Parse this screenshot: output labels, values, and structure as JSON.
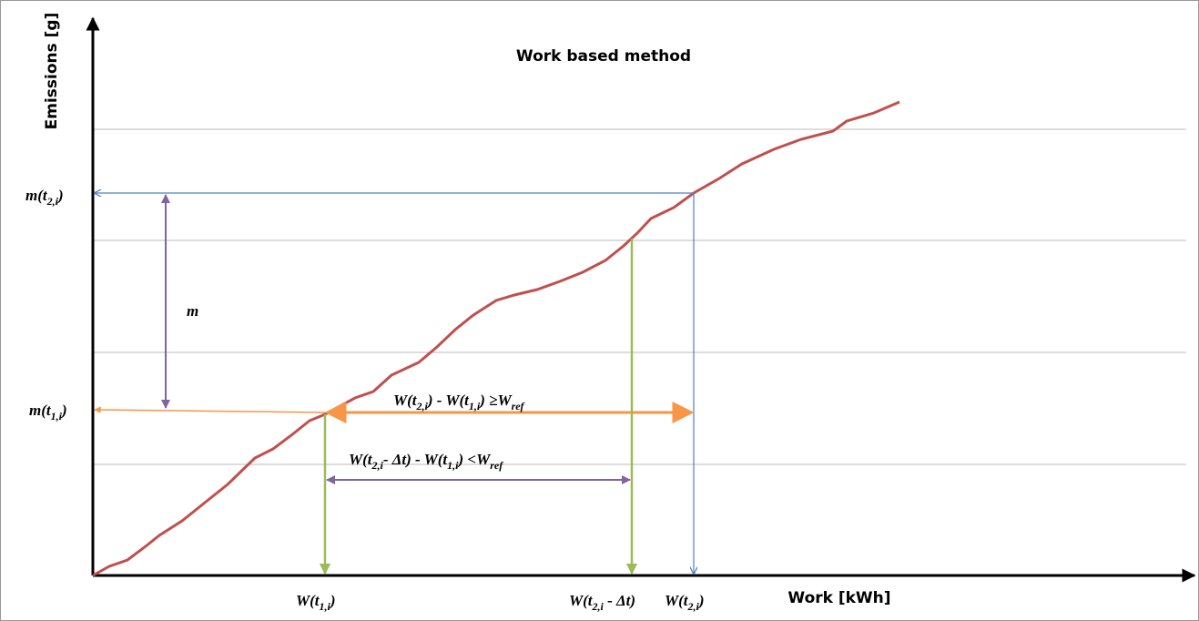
{
  "title": "Work based method",
  "y_axis_label": "Emissions [g]",
  "x_axis_label": "Work [kWh]",
  "annotations": {
    "m_t2": [
      {
        "text": "m(t"
      },
      {
        "sub": "2,i"
      },
      {
        "text": ")"
      }
    ],
    "m_t1": [
      {
        "text": "m(t"
      },
      {
        "sub": "1,i"
      },
      {
        "text": ")"
      }
    ],
    "m": [
      {
        "text": "m"
      }
    ],
    "upper_condition": [
      {
        "text": "W(t"
      },
      {
        "sub": "2,i"
      },
      {
        "text": ") - W(t"
      },
      {
        "sub": "1,i"
      },
      {
        "text": ") ≥W"
      },
      {
        "sub": "ref"
      }
    ],
    "lower_condition": [
      {
        "text": "W(t"
      },
      {
        "sub": "2,i"
      },
      {
        "text": "- Δt) - W(t"
      },
      {
        "sub": "1,i"
      },
      {
        "text": ") <W"
      },
      {
        "sub": "ref"
      }
    ],
    "w_t1": [
      {
        "text": "W(t"
      },
      {
        "sub": "1,i"
      },
      {
        "text": ")"
      }
    ],
    "w_t2_dt": [
      {
        "text": "W(t"
      },
      {
        "sub": "2,i"
      },
      {
        "text": " - Δt)"
      }
    ],
    "w_t2": [
      {
        "text": "W(t"
      },
      {
        "sub": "2,i"
      },
      {
        "text": ")"
      }
    ]
  }
}
